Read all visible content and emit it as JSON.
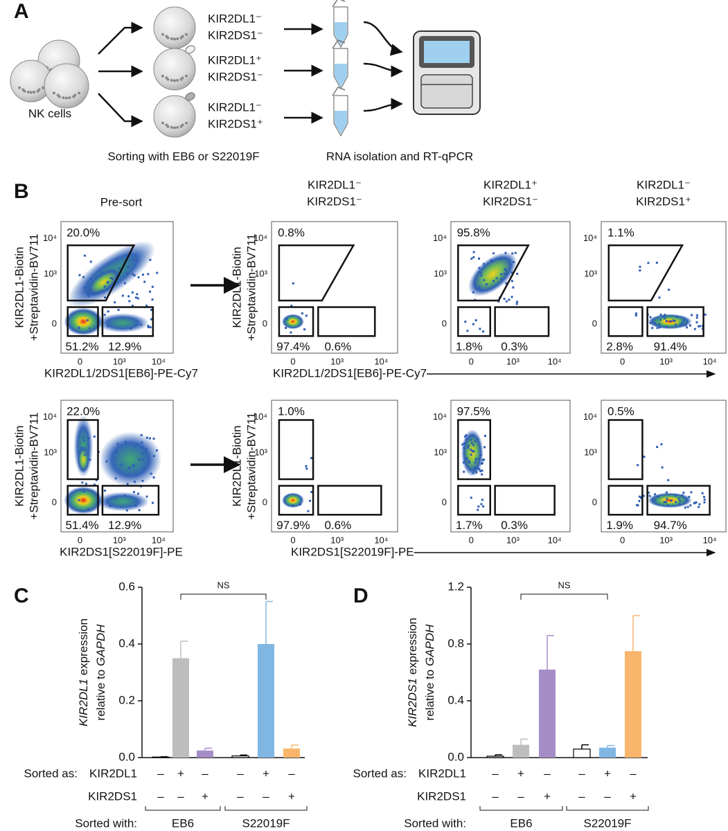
{
  "panel_a": {
    "label": "A",
    "source": "NK cells",
    "groups": [
      [
        "KIR2DL1⁻",
        "KIR2DS1⁻"
      ],
      [
        "KIR2DL1⁺",
        "KIR2DS1⁻"
      ],
      [
        "KIR2DL1⁻",
        "KIR2DS1⁺"
      ]
    ],
    "sorting": "Sorting with EB6 or S22019F",
    "analysis": "RNA isolation and RT-qPCR"
  },
  "panel_b": {
    "label": "B",
    "presort": "Pre-sort",
    "columns": [
      [
        "KIR2DL1⁻",
        "KIR2DS1⁻"
      ],
      [
        "KIR2DL1⁺",
        "KIR2DS1⁻"
      ],
      [
        "KIR2DL1⁻",
        "KIR2DS1⁺"
      ]
    ],
    "y_axis_label": [
      "KIR2DL1-Biotin",
      "+Streptavidin-BV711"
    ],
    "yticks": [
      "10⁴",
      "10³",
      "0"
    ],
    "xticks": [
      "0",
      "10³",
      "10⁴"
    ],
    "rows": [
      {
        "x_axis_label": "KIR2DL1/2DS1[EB6]-PE-Cy7",
        "gates": [
          [
            "20.0%",
            "51.2%",
            "12.9%"
          ],
          [
            "0.8%",
            "97.4%",
            "0.6%"
          ],
          [
            "95.8%",
            "1.8%",
            "0.3%"
          ],
          [
            "1.1%",
            "2.8%",
            "91.4%"
          ]
        ]
      },
      {
        "x_axis_label": "KIR2DS1[S22019F]-PE",
        "gates": [
          [
            "22.0%",
            "51.4%",
            "12.9%"
          ],
          [
            "1.0%",
            "97.9%",
            "0.6%"
          ],
          [
            "97.5%",
            "1.7%",
            "0.3%"
          ],
          [
            "0.5%",
            "1.9%",
            "94.7%"
          ]
        ]
      }
    ]
  },
  "chart_data": [
    {
      "type": "bar",
      "label": "C",
      "ylabel": {
        "gene": "KIR2DL1",
        "rest": " expression",
        "line2": "relative to ",
        "ref": "GAPDH"
      },
      "ylim": [
        0,
        0.6
      ],
      "yticks": [
        {
          "value": 0,
          "label": "0.0"
        },
        0.2,
        0.4,
        0.6
      ],
      "categories": [
        null,
        null,
        null,
        null,
        null,
        null
      ],
      "values": [
        0.002,
        0.35,
        0.025,
        0.006,
        0.4,
        0.032
      ],
      "errors": [
        0.001,
        0.06,
        0.008,
        0.003,
        0.15,
        0.012
      ],
      "colors": [
        "#ffffff",
        "#bdbdbd",
        "#a58dc8",
        "#ffffff",
        "#80b6e2",
        "#f8b56c"
      ],
      "edge_color": "#000000",
      "sorted_as_label": "Sorted as:",
      "sorted_as": [
        {
          "name": "KIR2DL1",
          "signs": [
            "–",
            "+",
            "–",
            "–",
            "+",
            "–"
          ]
        },
        {
          "name": "KIR2DS1",
          "signs": [
            "–",
            "–",
            "+",
            "–",
            "–",
            "+"
          ]
        }
      ],
      "sorted_with_label": "Sorted with:",
      "groups": [
        "EB6",
        "S22019F"
      ],
      "significance": "NS"
    },
    {
      "type": "bar",
      "label": "D",
      "ylabel": {
        "gene": "KIR2DS1",
        "rest": " expression",
        "line2": "relative to ",
        "ref": "GAPDH"
      },
      "ylim": [
        0,
        1.2
      ],
      "yticks": [
        {
          "value": 0,
          "label": "0.0"
        },
        0.4,
        0.8,
        1.2
      ],
      "categories": [
        null,
        null,
        null,
        null,
        null,
        null
      ],
      "values": [
        0.01,
        0.09,
        0.62,
        0.06,
        0.07,
        0.75
      ],
      "errors": [
        0.01,
        0.04,
        0.24,
        0.03,
        0.015,
        0.25
      ],
      "colors": [
        "#ffffff",
        "#bdbdbd",
        "#a58dc8",
        "#ffffff",
        "#80b6e2",
        "#f8b56c"
      ],
      "edge_color": "#000000",
      "sorted_as_label": "Sorted as:",
      "sorted_as": [
        {
          "name": "KIR2DL1",
          "signs": [
            "–",
            "+",
            "–",
            "–",
            "+",
            "–"
          ]
        },
        {
          "name": "KIR2DS1",
          "signs": [
            "–",
            "–",
            "+",
            "–",
            "–",
            "+"
          ]
        }
      ],
      "sorted_with_label": "Sorted with:",
      "groups": [
        "EB6",
        "S22019F"
      ],
      "significance": "NS"
    }
  ]
}
